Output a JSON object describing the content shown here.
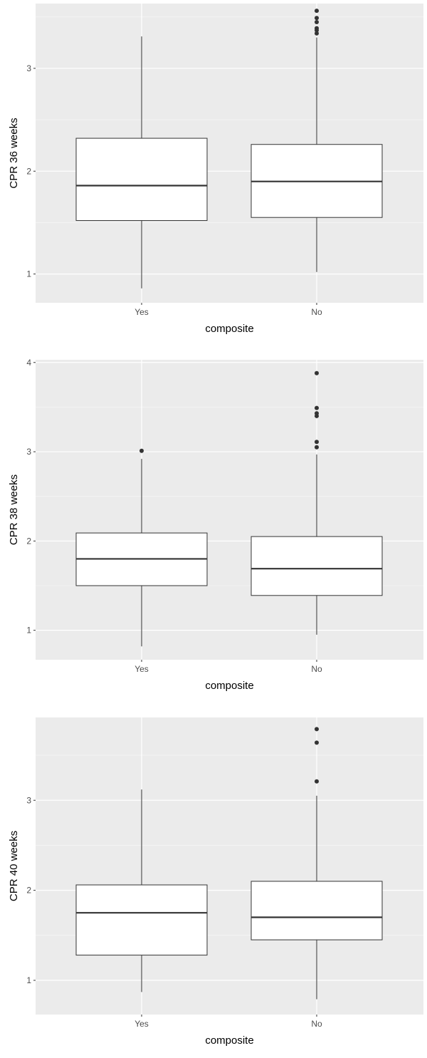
{
  "colors": {
    "panel_background": "#ebebeb",
    "major_grid": "#ffffff",
    "minor_grid": "#f5f5f5",
    "box_fill": "#ffffff",
    "box_stroke": "#333333",
    "outlier": "#333333",
    "tick_text": "#4d4d4d",
    "axis_title": "#000000"
  },
  "chart_data": [
    {
      "type": "boxplot",
      "xlabel": "composite",
      "ylabel": "CPR 36 weeks",
      "categories": [
        "Yes",
        "No"
      ],
      "ylim": [
        0.72,
        3.63
      ],
      "yticks": [
        "1",
        "2",
        "3"
      ],
      "ytick_values": [
        1,
        2,
        3
      ],
      "grid": true,
      "boxes": [
        {
          "category": "Yes",
          "whisker_low": 0.86,
          "q1": 1.52,
          "median": 1.86,
          "q3": 2.32,
          "whisker_high": 3.31,
          "outliers": []
        },
        {
          "category": "No",
          "whisker_low": 1.02,
          "q1": 1.55,
          "median": 1.9,
          "q3": 2.26,
          "whisker_high": 3.3,
          "outliers": [
            3.34,
            3.37,
            3.39,
            3.45,
            3.49,
            3.56
          ]
        }
      ]
    },
    {
      "type": "boxplot",
      "xlabel": "composite",
      "ylabel": "CPR 38 weeks",
      "categories": [
        "Yes",
        "No"
      ],
      "ylim": [
        0.67,
        4.03
      ],
      "yticks": [
        "1",
        "2",
        "3",
        "4"
      ],
      "ytick_values": [
        1,
        2,
        3,
        4
      ],
      "grid": true,
      "boxes": [
        {
          "category": "Yes",
          "whisker_low": 0.82,
          "q1": 1.5,
          "median": 1.8,
          "q3": 2.09,
          "whisker_high": 2.92,
          "outliers": [
            3.01
          ]
        },
        {
          "category": "No",
          "whisker_low": 0.95,
          "q1": 1.39,
          "median": 1.69,
          "q3": 2.05,
          "whisker_high": 2.97,
          "outliers": [
            3.05,
            3.11,
            3.4,
            3.43,
            3.49,
            3.88
          ]
        }
      ]
    },
    {
      "type": "boxplot",
      "xlabel": "composite",
      "ylabel": "CPR 40 weeks",
      "categories": [
        "Yes",
        "No"
      ],
      "ylim": [
        0.62,
        3.92
      ],
      "yticks": [
        "1",
        "2",
        "3"
      ],
      "ytick_values": [
        1,
        2,
        3
      ],
      "grid": true,
      "boxes": [
        {
          "category": "Yes",
          "whisker_low": 0.87,
          "q1": 1.28,
          "median": 1.75,
          "q3": 2.06,
          "whisker_high": 3.12,
          "outliers": []
        },
        {
          "category": "No",
          "whisker_low": 0.79,
          "q1": 1.45,
          "median": 1.7,
          "q3": 2.1,
          "whisker_high": 3.05,
          "outliers": [
            3.21,
            3.64,
            3.79
          ]
        }
      ]
    }
  ]
}
